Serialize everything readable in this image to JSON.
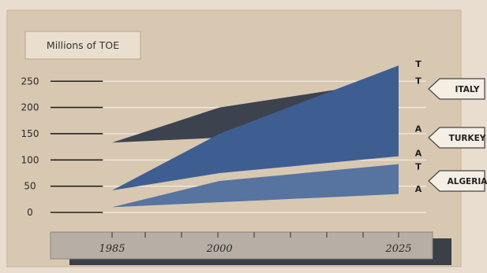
{
  "colors": {
    "page_bg": "#e9ddd0",
    "panel": "#d8c8b2",
    "panel_border": "#c7b399",
    "unit_box": "#eadfce",
    "gridline": "#f3ece2",
    "tick": "#222222",
    "axis_bar": "#b7aea5",
    "axis_shadow": "#3a3f48",
    "tag_fill": "#f4eee4",
    "tag_stroke": "#444444"
  },
  "chart_data": {
    "type": "area",
    "unit_label": "Millions of TOE",
    "y_ticks": [
      0,
      50,
      100,
      150,
      200,
      250
    ],
    "ylim": [
      0,
      290
    ],
    "xlim": [
      1985,
      2025
    ],
    "x_ticks": [
      "1985",
      "2000",
      "2025"
    ],
    "grid": true,
    "series": [
      {
        "name": "ITALY",
        "color": "#3c434f",
        "start_year": 1985,
        "start_value": 133,
        "upper": [
          [
            1985,
            133
          ],
          [
            2000,
            200
          ],
          [
            2025,
            252
          ]
        ],
        "lower": [
          [
            1985,
            133
          ],
          [
            2025,
            158
          ]
        ],
        "end_letters": [
          {
            "letter": "T",
            "value": 251
          },
          {
            "letter": "A",
            "value": 160
          }
        ]
      },
      {
        "name": "TURKEY",
        "color": "#3e5e92",
        "start_year": 1985,
        "start_value": 42,
        "upper": [
          [
            1985,
            42
          ],
          [
            2000,
            150
          ],
          [
            2025,
            280
          ]
        ],
        "lower": [
          [
            1985,
            42
          ],
          [
            2000,
            75
          ],
          [
            2025,
            107
          ]
        ],
        "end_letters": [
          {
            "letter": "T",
            "value": 283
          },
          {
            "letter": "A",
            "value": 113
          }
        ]
      },
      {
        "name": "ALGERIA",
        "color": "#56749f",
        "start_year": 1985,
        "start_value": 10,
        "upper": [
          [
            1985,
            10
          ],
          [
            2000,
            60
          ],
          [
            2025,
            92
          ]
        ],
        "lower": [
          [
            1985,
            10
          ],
          [
            2025,
            35
          ]
        ],
        "end_letters": [
          {
            "letter": "T",
            "value": 88
          },
          {
            "letter": "A",
            "value": 45
          }
        ]
      }
    ]
  }
}
